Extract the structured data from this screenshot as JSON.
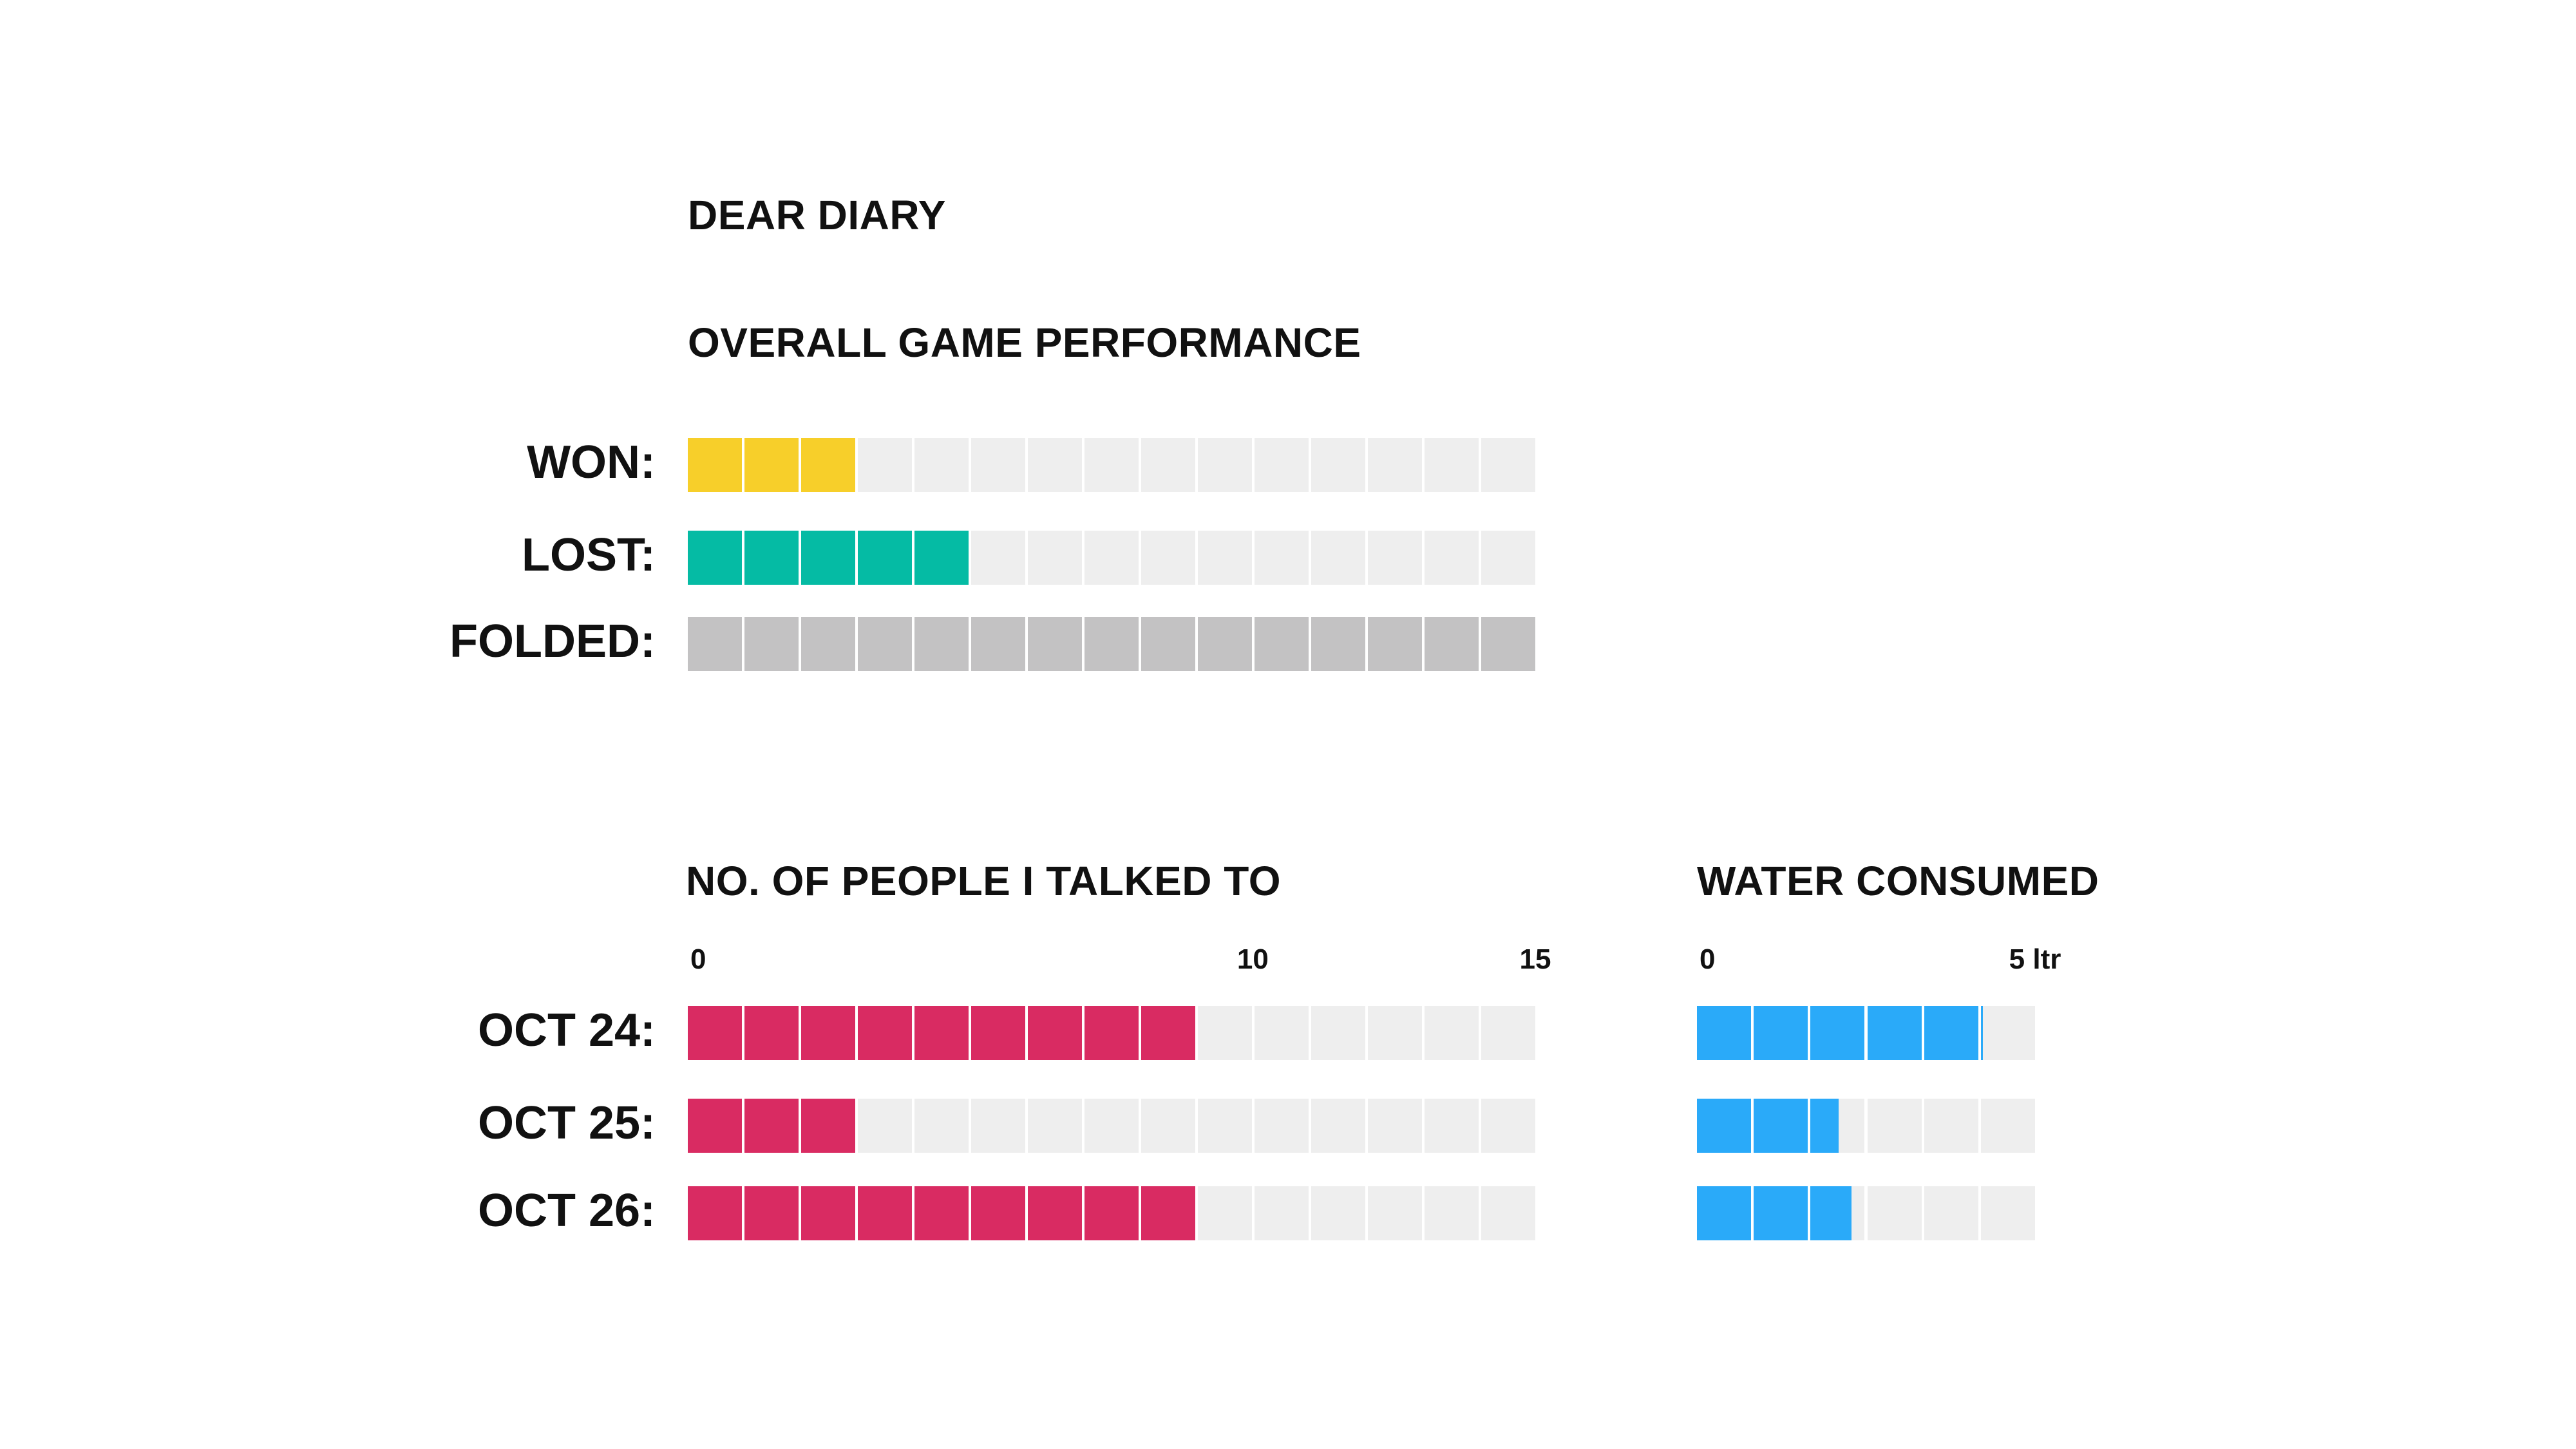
{
  "diary_title": "DEAR DIARY",
  "colors": {
    "empty": "#eeeeee",
    "won": "#f7cf2a",
    "lost": "#05bba4",
    "folded": "#c3c2c3",
    "people": "#d92b62",
    "water": "#2aaaf9"
  },
  "chart_data": [
    {
      "type": "bar",
      "title": "OVERALL GAME PERFORMANCE",
      "categories": [
        "WON:",
        "LOST:",
        "FOLDED:"
      ],
      "values": [
        3,
        5,
        15
      ],
      "max": 15
    },
    {
      "type": "bar",
      "title": "NO. OF PEOPLE I TALKED TO",
      "categories": [
        "OCT 24:",
        "OCT 25:",
        "OCT 26:"
      ],
      "values": [
        9,
        3,
        9
      ],
      "max": 15,
      "ticks": [
        {
          "value": 0,
          "label": "0"
        },
        {
          "value": 10,
          "label": "10"
        },
        {
          "value": 15,
          "label": "15"
        }
      ]
    },
    {
      "type": "bar",
      "title": "WATER CONSUMED",
      "categories": [
        "OCT 24:",
        "OCT 25:",
        "OCT 26:"
      ],
      "values": [
        4.2,
        2.1,
        2.3
      ],
      "max": 5,
      "unit": "ltr",
      "ticks": [
        {
          "value": 0,
          "label": "0"
        },
        {
          "value": 5,
          "label": "5 ltr"
        }
      ]
    }
  ]
}
